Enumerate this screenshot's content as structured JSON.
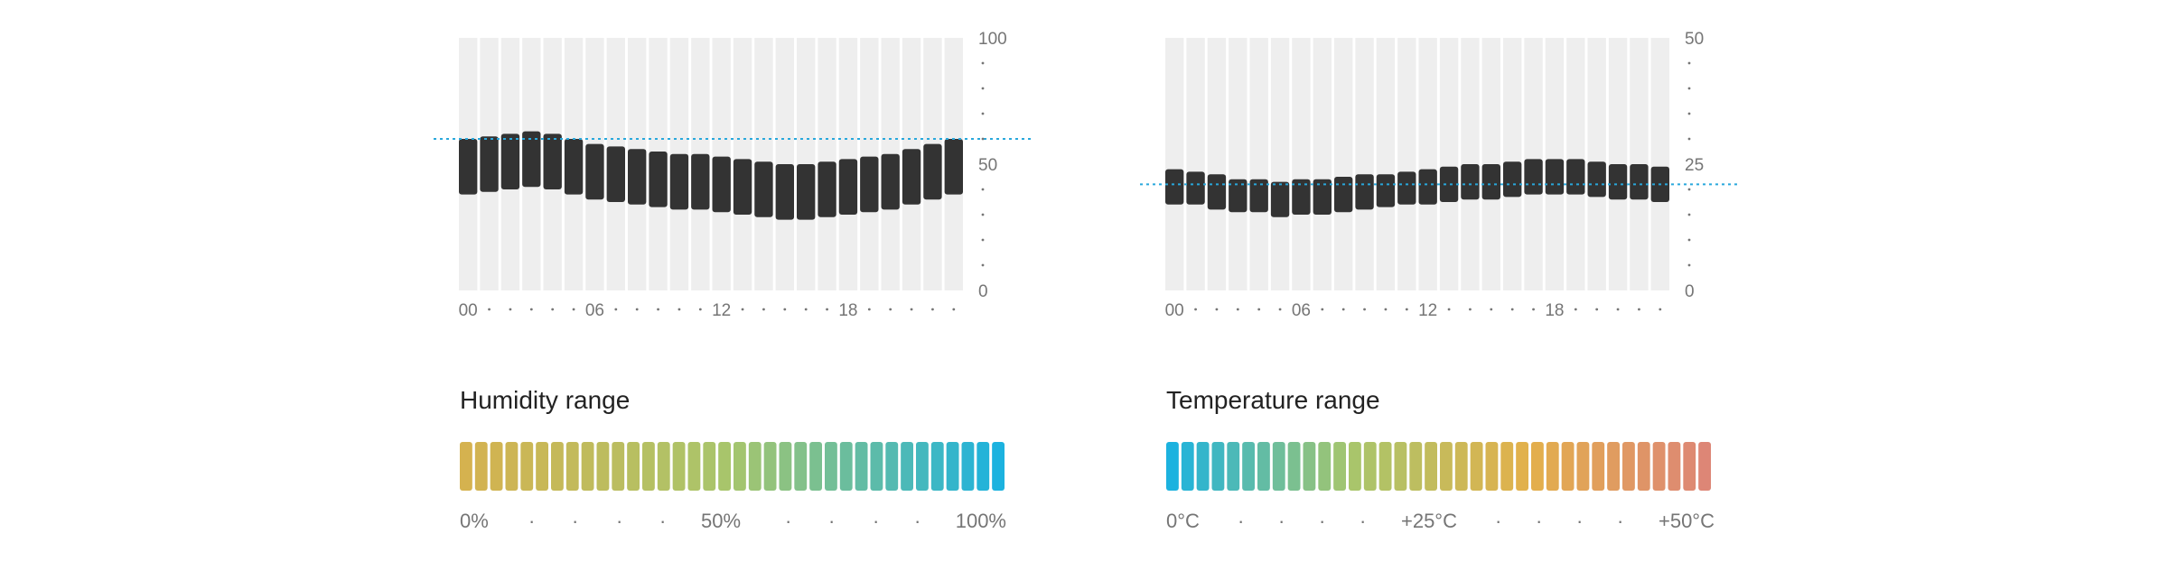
{
  "chart_data": [
    {
      "type": "range-bar",
      "x_ticks": [
        "00",
        "06",
        "12",
        "18"
      ],
      "y_ticks": [
        "0",
        "50",
        "100"
      ],
      "ylim": [
        0,
        100
      ],
      "hours": 24,
      "threshold": 60,
      "ranges": [
        [
          38,
          60
        ],
        [
          39,
          61
        ],
        [
          40,
          62
        ],
        [
          41,
          63
        ],
        [
          40,
          62
        ],
        [
          38,
          60
        ],
        [
          36,
          58
        ],
        [
          35,
          57
        ],
        [
          34,
          56
        ],
        [
          33,
          55
        ],
        [
          32,
          54
        ],
        [
          32,
          54
        ],
        [
          31,
          53
        ],
        [
          30,
          52
        ],
        [
          29,
          51
        ],
        [
          28,
          50
        ],
        [
          28,
          50
        ],
        [
          29,
          51
        ],
        [
          30,
          52
        ],
        [
          31,
          53
        ],
        [
          32,
          54
        ],
        [
          34,
          56
        ],
        [
          36,
          58
        ],
        [
          38,
          60
        ]
      ],
      "colors": {
        "column": "#eeeeee",
        "range": "#333333",
        "threshold": "#29a8dc",
        "tick": "#757575"
      }
    },
    {
      "type": "range-bar",
      "x_ticks": [
        "00",
        "06",
        "12",
        "18"
      ],
      "y_ticks": [
        "0",
        "25",
        "50"
      ],
      "ylim": [
        0,
        50
      ],
      "hours": 24,
      "threshold": 21,
      "ranges": [
        [
          17,
          24
        ],
        [
          17,
          23.5
        ],
        [
          16,
          23
        ],
        [
          15.5,
          22
        ],
        [
          15.5,
          22
        ],
        [
          14.5,
          21.5
        ],
        [
          15,
          22
        ],
        [
          15,
          22
        ],
        [
          15.5,
          22.5
        ],
        [
          16,
          23
        ],
        [
          16.5,
          23
        ],
        [
          17,
          23.5
        ],
        [
          17,
          24
        ],
        [
          17.5,
          24.5
        ],
        [
          18,
          25
        ],
        [
          18,
          25
        ],
        [
          18.5,
          25.5
        ],
        [
          19,
          26
        ],
        [
          19,
          26
        ],
        [
          19,
          26
        ],
        [
          18.5,
          25.5
        ],
        [
          18,
          25
        ],
        [
          18,
          25
        ],
        [
          17.5,
          24.5
        ]
      ],
      "colors": {
        "column": "#eeeeee",
        "range": "#333333",
        "threshold": "#29a8dc",
        "tick": "#757575"
      }
    }
  ],
  "humidity": {
    "title": "Humidity range",
    "scale": [
      "0%",
      "50%",
      "100%"
    ],
    "bar_count": 36,
    "gradient": [
      "#d5b24f",
      "#a7c66c",
      "#1cb2df"
    ]
  },
  "temperature": {
    "title": "Temperature range",
    "scale": [
      "0°C",
      "+25°C",
      "+50°C"
    ],
    "bar_count": 36,
    "gradient": [
      "#1cb2df",
      "#a7c66c",
      "#e3b04b",
      "#dd8676"
    ]
  }
}
